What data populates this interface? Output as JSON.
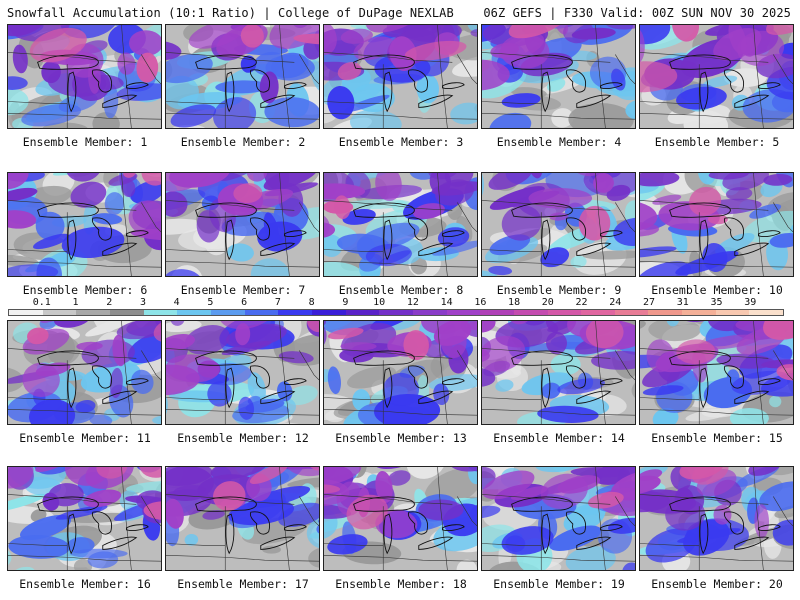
{
  "header": {
    "left": "Snowfall Accumulation (10:1 Ratio) | College of DuPage NEXLAB",
    "right": "06Z GEFS | F330 Valid: 00Z SUN NOV 30 2025"
  },
  "members": [
    {
      "label": "Ensemble Member: 1"
    },
    {
      "label": "Ensemble Member: 2"
    },
    {
      "label": "Ensemble Member: 3"
    },
    {
      "label": "Ensemble Member: 4"
    },
    {
      "label": "Ensemble Member: 5"
    },
    {
      "label": "Ensemble Member: 6"
    },
    {
      "label": "Ensemble Member: 7"
    },
    {
      "label": "Ensemble Member: 8"
    },
    {
      "label": "Ensemble Member: 9"
    },
    {
      "label": "Ensemble Member: 10"
    },
    {
      "label": "Ensemble Member: 11"
    },
    {
      "label": "Ensemble Member: 12"
    },
    {
      "label": "Ensemble Member: 13"
    },
    {
      "label": "Ensemble Member: 14"
    },
    {
      "label": "Ensemble Member: 15"
    },
    {
      "label": "Ensemble Member: 16"
    },
    {
      "label": "Ensemble Member: 17"
    },
    {
      "label": "Ensemble Member: 18"
    },
    {
      "label": "Ensemble Member: 19"
    },
    {
      "label": "Ensemble Member: 20"
    }
  ],
  "colorbar": {
    "ticks": [
      "0.1",
      "1",
      "2",
      "3",
      "4",
      "5",
      "6",
      "7",
      "8",
      "9",
      "10",
      "12",
      "14",
      "16",
      "18",
      "20",
      "22",
      "24",
      "27",
      "31",
      "35",
      "39"
    ],
    "colors": [
      "#f2f2f2",
      "#c8c8c8",
      "#a8a8a8",
      "#8e8e8e",
      "#8ee4e8",
      "#6cc6f0",
      "#5c9cf0",
      "#4a6cf0",
      "#3a3af0",
      "#3a1ed8",
      "#5a22c8",
      "#7430c8",
      "#8a3cc8",
      "#a040c8",
      "#b040b8",
      "#c44cb0",
      "#d458a8",
      "#e066a0",
      "#e87c96",
      "#f0988c",
      "#f4b098",
      "#f8c8b0",
      "#fae0cc"
    ]
  }
}
